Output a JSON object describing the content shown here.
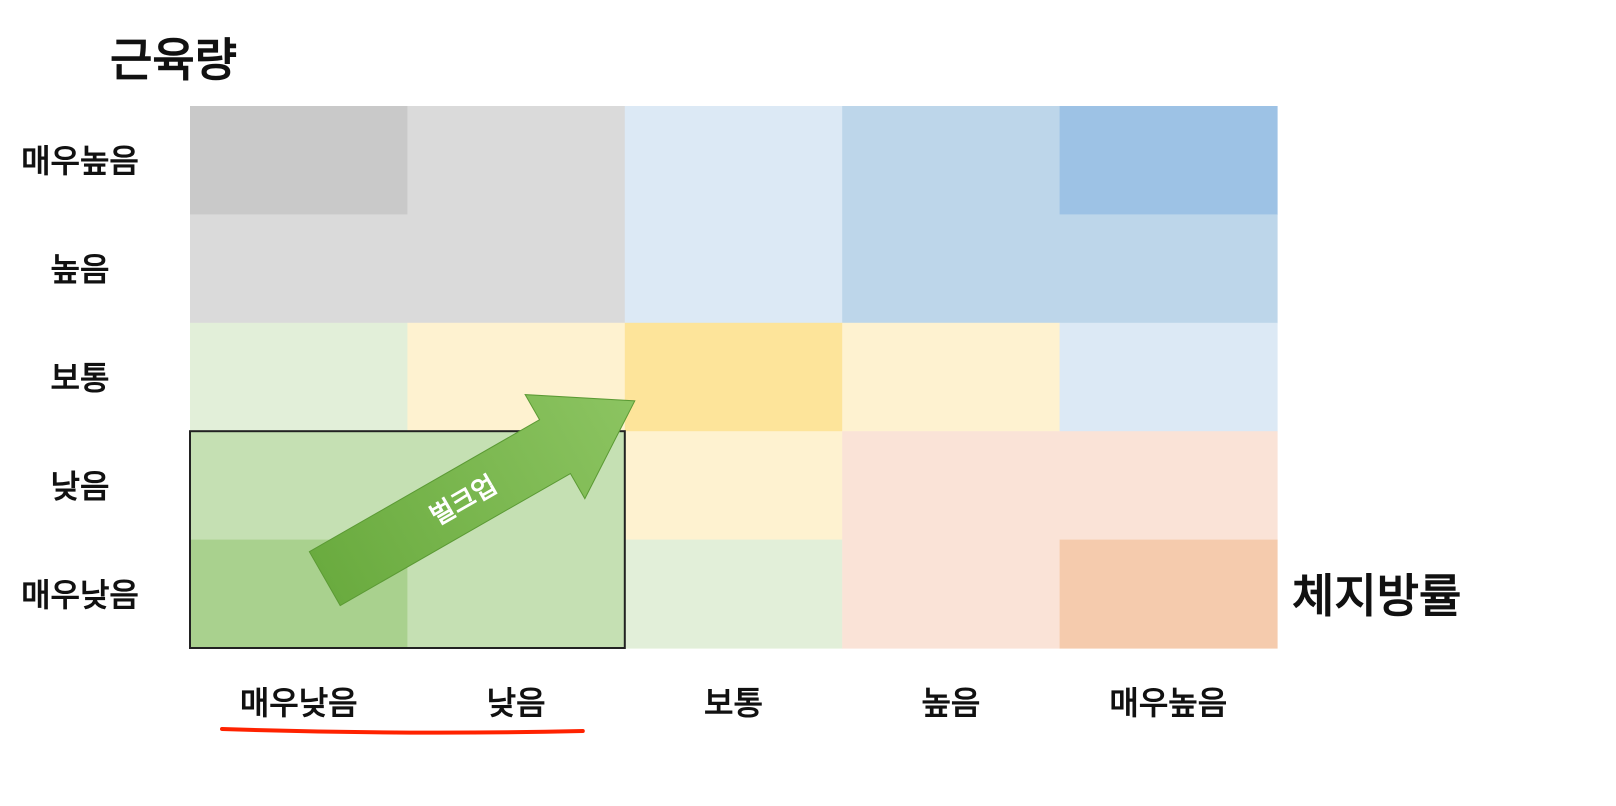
{
  "chart_data": {
    "type": "heatmap",
    "y_title": "근육량",
    "x_title": "체지방률",
    "x_categories": [
      "매우낮음",
      "낮음",
      "보통",
      "높음",
      "매우높음"
    ],
    "y_categories": [
      "매우높음",
      "높음",
      "보통",
      "낮음",
      "매우낮음"
    ],
    "cell_colors": [
      [
        "#c9c9c9",
        "#dadada",
        "#dce9f5",
        "#bdd6ea",
        "#9dc2e5"
      ],
      [
        "#dadada",
        "#dadada",
        "#dce9f5",
        "#bdd6ea",
        "#bdd6ea"
      ],
      [
        "#e2efd9",
        "#fef2d0",
        "#fde49a",
        "#fef2d0",
        "#dce9f5"
      ],
      [
        "#c5e0b3",
        "#c5e0b3",
        "#fef2d0",
        "#fae3d7",
        "#fae3d7"
      ],
      [
        "#a9d18e",
        "#c5e0b3",
        "#e2efd9",
        "#fae3d7",
        "#f5cbad"
      ]
    ],
    "highlight_region": {
      "columns": [
        "매우낮음",
        "낮음"
      ],
      "rows": [
        "낮음",
        "매우낮음"
      ]
    },
    "arrow": {
      "label": "벌크업",
      "from": {
        "column": "매우낮음",
        "row": "매우낮음"
      },
      "to": {
        "column": "보통",
        "row": "보통"
      },
      "color": "#70ad47"
    },
    "underlined_x_categories": [
      "매우낮음",
      "낮음"
    ],
    "underline_color": "#ff2200",
    "grid": false,
    "legend": "none"
  }
}
